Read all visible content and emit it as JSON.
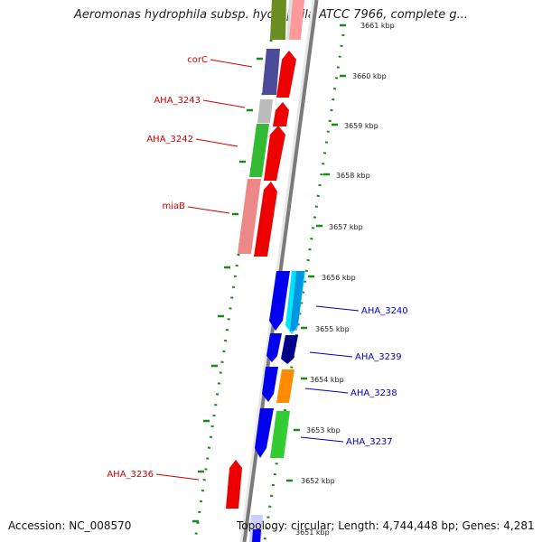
{
  "title": "Aeromonas hydrophila subsp. hydrophila ATCC 7966, complete g...",
  "footer": {
    "accession": "Accession: NC_008570",
    "summary": "Topology: circular; Length: 4,744,448 bp; Genes: 4,281"
  },
  "colors": {
    "reverse_label": "#cc0000",
    "forward_label": "#0000bb",
    "ring_dots": "#1a8a1a",
    "backbone": "#888888"
  },
  "scale_ticks": [
    "3661 kbp",
    "3660 kbp",
    "3659 kbp",
    "3658 kbp",
    "3657 kbp",
    "3656 kbp",
    "3655 kbp",
    "3654 kbp",
    "3653 kbp",
    "3652 kbp",
    "3651 kbp"
  ],
  "reverse_gene_labels": [
    "corC",
    "AHA_3243",
    "AHA_3242",
    "miaB",
    "AHA_3236"
  ],
  "forward_gene_labels": [
    "AHA_3240",
    "AHA_3239",
    "AHA_3238",
    "AHA_3237"
  ]
}
